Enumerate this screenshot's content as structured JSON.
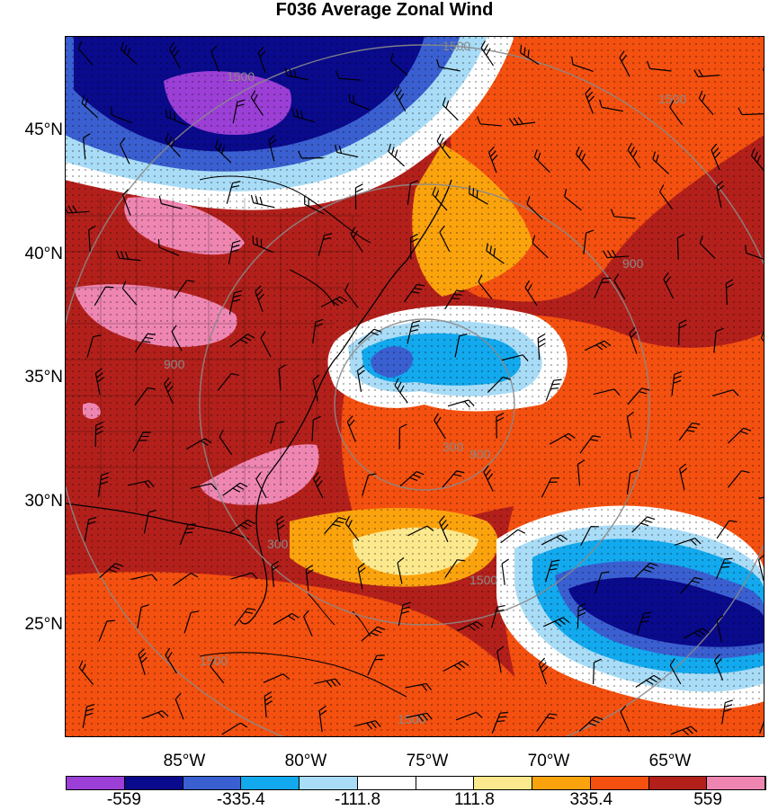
{
  "title": "F036 Average Zonal Wind",
  "lat_labels": [
    {
      "text": "45°N",
      "value": 45
    },
    {
      "text": "40°N",
      "value": 40
    },
    {
      "text": "35°N",
      "value": 35
    },
    {
      "text": "30°N",
      "value": 30
    },
    {
      "text": "25°N",
      "value": 25
    }
  ],
  "lon_labels": [
    {
      "text": "85°W",
      "value": -85
    },
    {
      "text": "80°W",
      "value": -80
    },
    {
      "text": "75°W",
      "value": -75
    },
    {
      "text": "70°W",
      "value": -70
    },
    {
      "text": "65°W",
      "value": -65
    }
  ],
  "contour_labels": [
    "1500",
    "1500",
    "1500",
    "900",
    "900",
    "900",
    "300",
    "300",
    "1500",
    "1500",
    "1500"
  ],
  "colorbar": {
    "colors": [
      "#9b3fd6",
      "#0a0a8c",
      "#3a5fd0",
      "#12a9ee",
      "#a9dcf6",
      "#ffffff",
      "#ffffff",
      "#fde98d",
      "#fba30d",
      "#f4500f",
      "#b3201b",
      "#ef86b2"
    ],
    "labels": [
      "-559",
      "-335.4",
      "-111.8",
      "111.8",
      "335.4",
      "559"
    ]
  },
  "palette": {
    "purple": "#9b3fd6",
    "dark_blue": "#0a0a8c",
    "mid_blue": "#3a5fd0",
    "cyan": "#12a9ee",
    "light_blue": "#a9dcf6",
    "white": "#ffffff",
    "yellow": "#fde98d",
    "orange": "#fba30d",
    "red_orange": "#f4500f",
    "dark_red": "#b3201b",
    "pink": "#ef86b2"
  }
}
